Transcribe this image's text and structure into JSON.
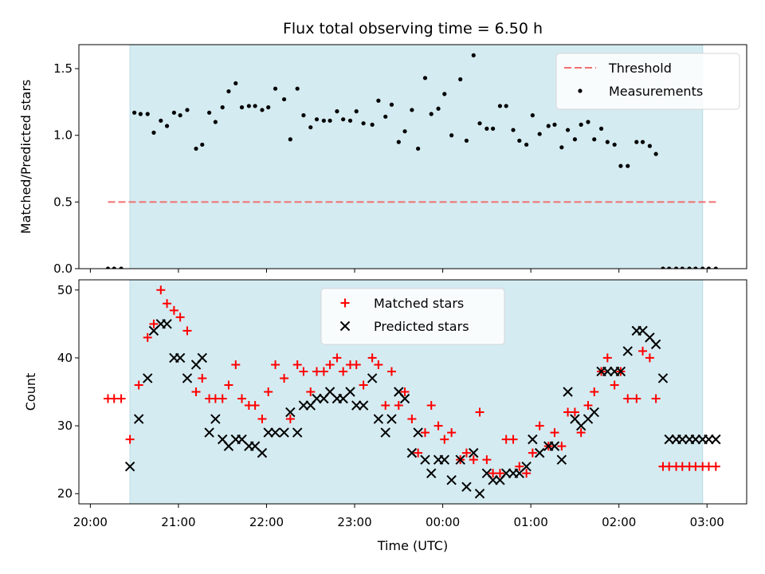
{
  "chart_data": {
    "type": "scatter",
    "title": "Flux total observing time = 6.50 h",
    "xlabel": "Time (UTC)",
    "x_ticks": [
      "20:00",
      "21:00",
      "22:00",
      "23:00",
      "00:00",
      "01:00",
      "02:00",
      "03:00"
    ],
    "time_range_hours": [
      19.87,
      27.45
    ],
    "observing_window_hours": [
      20.45,
      26.95
    ],
    "window_color": "#d4ebf1",
    "panels": [
      {
        "id": "ratio",
        "ylabel": "Matched/Predicted stars",
        "ylim": [
          0.0,
          1.68
        ],
        "yticks": [
          0.0,
          0.5,
          1.0,
          1.5
        ],
        "y_tick_labels": [
          "0.0",
          "0.5",
          "1.0",
          "1.5"
        ],
        "legend_position": "top-right",
        "threshold": {
          "name": "Threshold",
          "value": 0.5,
          "x_range": [
            20.2,
            27.1
          ],
          "color": "#f07070"
        },
        "series": [
          {
            "name": "Measurements",
            "marker": "dot",
            "color": "#000000",
            "x": [
              20.2,
              20.27,
              20.35,
              20.5,
              20.57,
              20.65,
              20.72,
              20.8,
              20.87,
              20.95,
              21.02,
              21.1,
              21.2,
              21.27,
              21.35,
              21.42,
              21.5,
              21.57,
              21.65,
              21.72,
              21.8,
              21.87,
              21.95,
              22.02,
              22.1,
              22.2,
              22.27,
              22.35,
              22.42,
              22.5,
              22.57,
              22.65,
              22.72,
              22.8,
              22.87,
              22.95,
              23.02,
              23.1,
              23.2,
              23.27,
              23.35,
              23.42,
              23.5,
              23.57,
              23.65,
              23.72,
              23.8,
              23.87,
              23.95,
              24.02,
              24.1,
              24.2,
              24.27,
              24.35,
              24.42,
              24.5,
              24.57,
              24.65,
              24.72,
              24.8,
              24.87,
              24.95,
              25.02,
              25.1,
              25.2,
              25.27,
              25.35,
              25.42,
              25.5,
              25.57,
              25.65,
              25.72,
              25.8,
              25.87,
              25.95,
              26.02,
              26.1,
              26.2,
              26.27,
              26.35,
              26.42,
              26.5,
              26.57,
              26.65,
              26.72,
              26.8,
              26.87,
              26.95,
              27.02,
              27.1
            ],
            "y": [
              0.0,
              0.0,
              0.0,
              1.17,
              1.16,
              1.16,
              1.02,
              1.11,
              1.07,
              1.17,
              1.15,
              1.19,
              0.9,
              0.93,
              1.17,
              1.1,
              1.21,
              1.33,
              1.39,
              1.21,
              1.22,
              1.22,
              1.19,
              1.21,
              1.35,
              1.27,
              0.97,
              1.35,
              1.15,
              1.06,
              1.12,
              1.11,
              1.11,
              1.18,
              1.12,
              1.11,
              1.18,
              1.09,
              1.08,
              1.26,
              1.14,
              1.23,
              0.95,
              1.03,
              1.19,
              0.9,
              1.43,
              1.16,
              1.2,
              1.31,
              1.0,
              1.42,
              0.96,
              1.6,
              1.09,
              1.05,
              1.05,
              1.22,
              1.22,
              1.04,
              0.96,
              0.93,
              1.15,
              1.01,
              1.07,
              1.08,
              0.91,
              1.04,
              0.97,
              1.08,
              1.1,
              0.97,
              1.05,
              0.95,
              0.93,
              0.77,
              0.77,
              0.95,
              0.95,
              0.92,
              0.86,
              0.0,
              0.0,
              0.0,
              0.0,
              0.0,
              0.0,
              0.0,
              0.0,
              0.0
            ]
          }
        ]
      },
      {
        "id": "counts",
        "ylabel": "Count",
        "ylim": [
          18.5,
          51.5
        ],
        "yticks": [
          20,
          30,
          40,
          50
        ],
        "y_tick_labels": [
          "20",
          "30",
          "40",
          "50"
        ],
        "legend_position": "top-center",
        "series": [
          {
            "name": "Matched stars",
            "marker": "plus",
            "color": "#ff0000",
            "x": [
              20.2,
              20.27,
              20.35,
              20.45,
              20.55,
              20.65,
              20.72,
              20.8,
              20.87,
              20.95,
              21.02,
              21.1,
              21.2,
              21.27,
              21.35,
              21.42,
              21.5,
              21.57,
              21.65,
              21.72,
              21.8,
              21.87,
              21.95,
              22.02,
              22.1,
              22.2,
              22.27,
              22.35,
              22.42,
              22.5,
              22.57,
              22.65,
              22.72,
              22.8,
              22.87,
              22.95,
              23.02,
              23.1,
              23.2,
              23.27,
              23.35,
              23.42,
              23.5,
              23.57,
              23.65,
              23.72,
              23.8,
              23.87,
              23.95,
              24.02,
              24.1,
              24.2,
              24.27,
              24.35,
              24.42,
              24.5,
              24.57,
              24.65,
              24.72,
              24.8,
              24.87,
              24.95,
              25.02,
              25.1,
              25.2,
              25.27,
              25.35,
              25.42,
              25.5,
              25.57,
              25.65,
              25.72,
              25.8,
              25.87,
              25.95,
              26.02,
              26.1,
              26.2,
              26.27,
              26.35,
              26.42,
              26.5,
              26.57,
              26.65,
              26.72,
              26.8,
              26.87,
              26.95,
              27.02,
              27.1
            ],
            "y": [
              34,
              34,
              34,
              28,
              36,
              43,
              45,
              50,
              48,
              47,
              46,
              44,
              35,
              37,
              34,
              34,
              34,
              36,
              39,
              34,
              33,
              33,
              31,
              35,
              39,
              37,
              31,
              39,
              38,
              35,
              38,
              38,
              39,
              40,
              38,
              39,
              39,
              36,
              40,
              39,
              33,
              38,
              33,
              35,
              31,
              26,
              29,
              33,
              30,
              28,
              29,
              25,
              26,
              25,
              32,
              25,
              23,
              23,
              28,
              28,
              24,
              23,
              26,
              30,
              27,
              29,
              27,
              32,
              32,
              29,
              33,
              35,
              38,
              40,
              36,
              38,
              34,
              34,
              41,
              40,
              34,
              24,
              24,
              24,
              24,
              24,
              24,
              24,
              24,
              24
            ]
          },
          {
            "name": "Predicted stars",
            "marker": "x",
            "color": "#000000",
            "x": [
              20.45,
              20.55,
              20.65,
              20.72,
              20.8,
              20.87,
              20.95,
              21.02,
              21.1,
              21.2,
              21.27,
              21.35,
              21.42,
              21.5,
              21.57,
              21.65,
              21.72,
              21.8,
              21.87,
              21.95,
              22.02,
              22.1,
              22.2,
              22.27,
              22.35,
              22.42,
              22.5,
              22.57,
              22.65,
              22.72,
              22.8,
              22.87,
              22.95,
              23.02,
              23.1,
              23.2,
              23.27,
              23.35,
              23.42,
              23.5,
              23.57,
              23.65,
              23.72,
              23.8,
              23.87,
              23.95,
              24.02,
              24.1,
              24.2,
              24.27,
              24.35,
              24.42,
              24.5,
              24.57,
              24.65,
              24.72,
              24.8,
              24.87,
              24.95,
              25.02,
              25.1,
              25.2,
              25.27,
              25.35,
              25.42,
              25.5,
              25.57,
              25.65,
              25.72,
              25.8,
              25.87,
              25.95,
              26.02,
              26.1,
              26.2,
              26.27,
              26.35,
              26.42,
              26.5,
              26.57,
              26.65,
              26.72,
              26.8,
              26.87,
              26.95,
              27.02,
              27.1
            ],
            "y": [
              24,
              31,
              37,
              44,
              45,
              45,
              40,
              40,
              37,
              39,
              40,
              29,
              31,
              28,
              27,
              28,
              28,
              27,
              27,
              26,
              29,
              29,
              29,
              32,
              29,
              33,
              33,
              34,
              34,
              35,
              34,
              34,
              35,
              33,
              33,
              37,
              31,
              29,
              31,
              35,
              34,
              26,
              29,
              25,
              23,
              25,
              25,
              22,
              25,
              21,
              26,
              20,
              23,
              22,
              22,
              23,
              23,
              23,
              24,
              28,
              26,
              27,
              27,
              25,
              35,
              31,
              30,
              31,
              32,
              38,
              38,
              38,
              38,
              41,
              44,
              44,
              43,
              42,
              37,
              28,
              28,
              28,
              28,
              28,
              28,
              28,
              28
            ]
          }
        ]
      }
    ]
  }
}
